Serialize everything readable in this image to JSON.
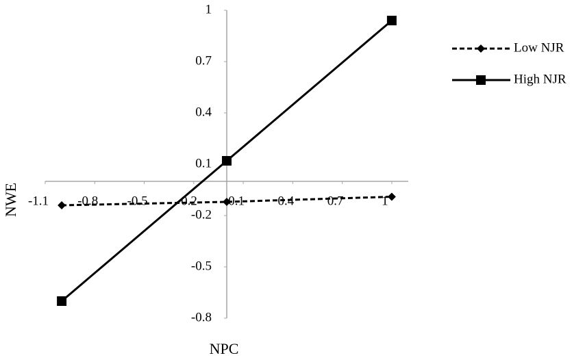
{
  "chart_data": {
    "type": "line",
    "x_label": "NPC",
    "y_label": "NWE",
    "xlim": [
      -1.1,
      1.1
    ],
    "xticks": [
      -1.1,
      -0.8,
      -0.5,
      -0.2,
      0.1,
      0.4,
      0.7,
      1
    ],
    "ylim": [
      -0.8,
      1
    ],
    "yticks": [
      1,
      0.7,
      0.4,
      0.1,
      -0.2,
      -0.5,
      -0.8
    ],
    "x": [
      -1,
      0,
      1
    ],
    "series": [
      {
        "name": "Low NJR",
        "color": "#000000",
        "line_style": "dashed",
        "marker": "diamond",
        "values": [
          -0.14,
          -0.12,
          -0.09
        ]
      },
      {
        "name": "High NJR",
        "color": "#000000",
        "line_style": "solid",
        "marker": "square",
        "values": [
          -0.7,
          0.12,
          0.94
        ]
      }
    ]
  }
}
